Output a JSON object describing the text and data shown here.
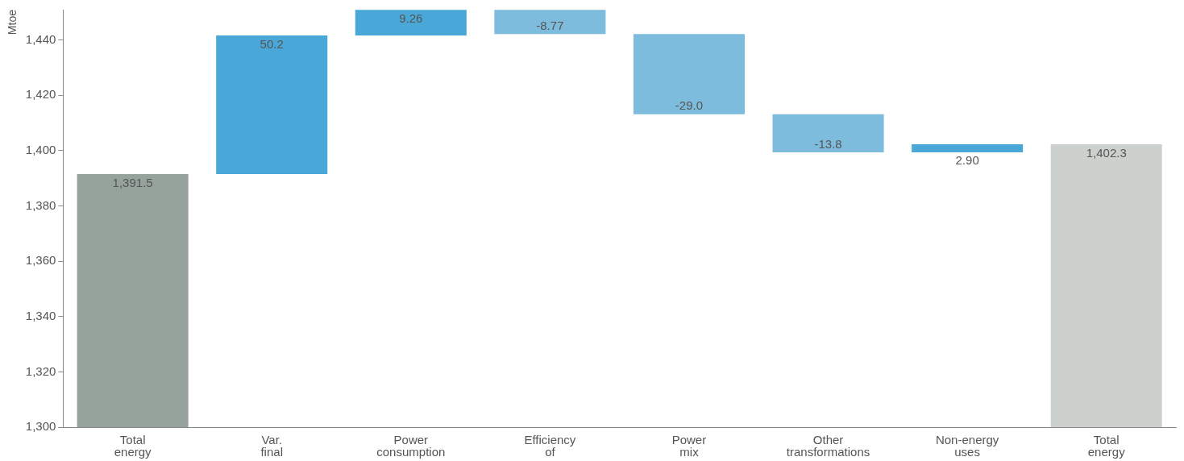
{
  "chart_data": {
    "type": "bar",
    "ylabel": "Mtoe",
    "categories": [
      "Total energy",
      "Var. final",
      "Power consumption",
      "Efficiency of",
      "Power mix",
      "Other transformations",
      "Non-energy uses",
      "Total energy"
    ],
    "values": [
      1391.5,
      50.2,
      9.26,
      -8.77,
      -29.0,
      -13.8,
      2.9,
      1402.3
    ],
    "base": [
      0,
      1391.5,
      1441.7,
      1450.96,
      1442.19,
      1413.19,
      1399.39,
      0
    ],
    "colors": [
      "#96a39c",
      "#4aa8d8",
      "#4aa8d8",
      "#7dbcdd",
      "#7dbcdd",
      "#7dbcdd",
      "#4aa8d8",
      "#ccd1ce"
    ],
    "value_labels": [
      "1,391.5",
      "50.2",
      "9.26",
      "-8.77",
      "-29.0",
      "-13.8",
      "2.90",
      "1,402.3"
    ],
    "ylim": [
      1300,
      1451
    ],
    "yticks": [
      {
        "value": 1300,
        "label": "1,300"
      },
      {
        "value": 1320,
        "label": "1,320"
      },
      {
        "value": 1340,
        "label": "1,340"
      },
      {
        "value": 1360,
        "label": "1,360"
      },
      {
        "value": 1380,
        "label": "1,380"
      },
      {
        "value": 1400,
        "label": "1,400"
      },
      {
        "value": 1420,
        "label": "1,420"
      },
      {
        "value": 1440,
        "label": "1,440"
      }
    ],
    "grid": false,
    "legend": false
  }
}
